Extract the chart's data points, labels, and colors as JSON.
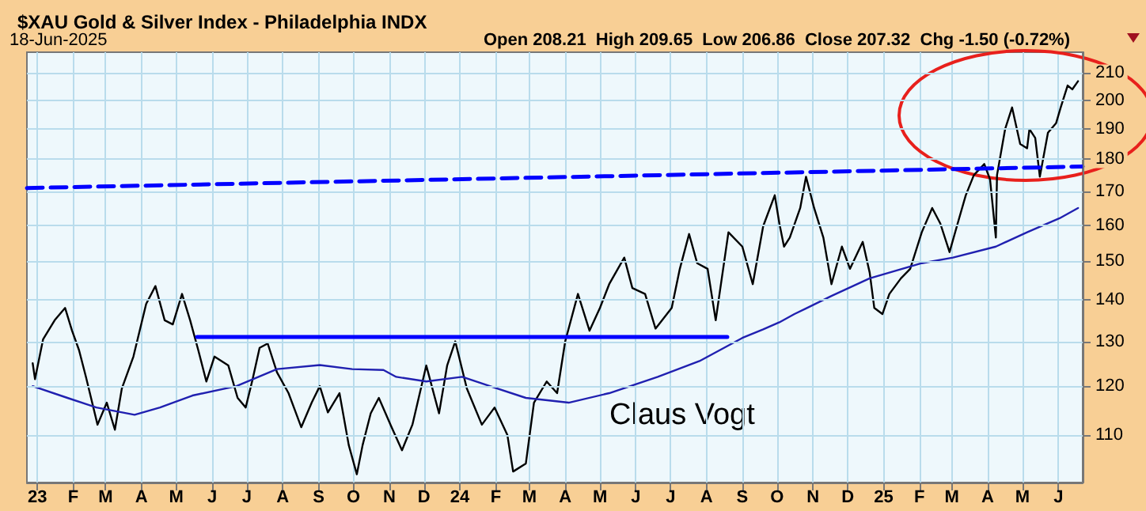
{
  "chart_data": {
    "type": "line",
    "title": "$XAU Gold & Silver Index - Philadelphia INDX",
    "annotations": [
      "18-Jun-2025",
      "Open 208.21  High 209.65  Low 206.86  Close 207.32  Chg -1.50 (-0.72%)",
      "Claus Vogt"
    ],
    "log": "y",
    "grid": true,
    "marker": "none",
    "xlim": [
      "2022-12-23",
      "2025-06-22"
    ],
    "xticks": [
      {
        "value": "2023-01-01",
        "label": "23"
      },
      {
        "value": "2023-02-01",
        "label": "F"
      },
      {
        "value": "2023-03-01",
        "label": "M"
      },
      {
        "value": "2023-04-01",
        "label": "A"
      },
      {
        "value": "2023-05-01",
        "label": "M"
      },
      {
        "value": "2023-06-01",
        "label": "J"
      },
      {
        "value": "2023-07-01",
        "label": "J"
      },
      {
        "value": "2023-08-01",
        "label": "A"
      },
      {
        "value": "2023-09-01",
        "label": "S"
      },
      {
        "value": "2023-10-01",
        "label": "O"
      },
      {
        "value": "2023-11-01",
        "label": "N"
      },
      {
        "value": "2023-12-01",
        "label": "D"
      },
      {
        "value": "2024-01-01",
        "label": "24"
      },
      {
        "value": "2024-02-01",
        "label": "F"
      },
      {
        "value": "2024-03-01",
        "label": "M"
      },
      {
        "value": "2024-04-01",
        "label": "A"
      },
      {
        "value": "2024-05-01",
        "label": "M"
      },
      {
        "value": "2024-06-01",
        "label": "J"
      },
      {
        "value": "2024-07-01",
        "label": "J"
      },
      {
        "value": "2024-08-01",
        "label": "A"
      },
      {
        "value": "2024-09-01",
        "label": "S"
      },
      {
        "value": "2024-10-01",
        "label": "O"
      },
      {
        "value": "2024-11-01",
        "label": "N"
      },
      {
        "value": "2024-12-01",
        "label": "D"
      },
      {
        "value": "2025-01-01",
        "label": "25"
      },
      {
        "value": "2025-02-01",
        "label": "F"
      },
      {
        "value": "2025-03-01",
        "label": "M"
      },
      {
        "value": "2025-04-01",
        "label": "A"
      },
      {
        "value": "2025-05-01",
        "label": "M"
      },
      {
        "value": "2025-06-01",
        "label": "J"
      }
    ],
    "ylim": [
      101,
      218
    ],
    "yticks": [
      110,
      120,
      130,
      140,
      150,
      160,
      170,
      180,
      190,
      200,
      210
    ],
    "series": [
      {
        "color": "#000000",
        "line_style": "solid",
        "x": [
          "2022-12-28",
          "2022-12-30",
          "2023-01-06",
          "2023-01-16",
          "2023-01-25",
          "2023-01-31",
          "2023-02-06",
          "2023-02-12",
          "2023-02-22",
          "2023-03-02",
          "2023-03-09",
          "2023-03-15",
          "2023-03-25",
          "2023-04-05",
          "2023-04-13",
          "2023-04-21",
          "2023-04-28",
          "2023-05-06",
          "2023-05-13",
          "2023-05-20",
          "2023-05-27",
          "2023-06-03",
          "2023-06-15",
          "2023-06-23",
          "2023-06-30",
          "2023-07-06",
          "2023-07-12",
          "2023-07-19",
          "2023-07-27",
          "2023-08-06",
          "2023-08-17",
          "2023-08-26",
          "2023-09-02",
          "2023-09-09",
          "2023-09-19",
          "2023-09-27",
          "2023-10-04",
          "2023-10-09",
          "2023-10-16",
          "2023-10-23",
          "2023-11-03",
          "2023-11-12",
          "2023-11-21",
          "2023-12-03",
          "2023-12-14",
          "2023-12-21",
          "2023-12-28",
          "2024-01-07",
          "2024-01-20",
          "2024-01-31",
          "2024-02-11",
          "2024-02-16",
          "2024-02-27",
          "2024-03-05",
          "2024-03-16",
          "2024-03-25",
          "2024-04-01",
          "2024-04-12",
          "2024-04-22",
          "2024-05-01",
          "2024-05-09",
          "2024-05-22",
          "2024-05-29",
          "2024-06-09",
          "2024-06-18",
          "2024-07-02",
          "2024-07-09",
          "2024-07-17",
          "2024-07-24",
          "2024-08-02",
          "2024-08-09",
          "2024-08-20",
          "2024-09-01",
          "2024-09-10",
          "2024-09-19",
          "2024-09-29",
          "2024-10-03",
          "2024-10-07",
          "2024-10-12",
          "2024-10-21",
          "2024-10-26",
          "2024-11-02",
          "2024-11-10",
          "2024-11-17",
          "2024-11-26",
          "2024-12-03",
          "2024-12-14",
          "2024-12-20",
          "2024-12-24",
          "2024-12-31",
          "2025-01-06",
          "2025-01-16",
          "2025-01-24",
          "2025-02-03",
          "2025-02-12",
          "2025-02-19",
          "2025-02-27",
          "2025-03-06",
          "2025-03-13",
          "2025-03-20",
          "2025-03-29",
          "2025-04-03",
          "2025-04-08",
          "2025-04-09",
          "2025-04-16",
          "2025-04-22",
          "2025-04-29",
          "2025-05-05",
          "2025-05-07",
          "2025-05-12",
          "2025-05-16",
          "2025-05-23",
          "2025-05-30",
          "2025-06-03",
          "2025-06-09",
          "2025-06-13",
          "2025-06-18"
        ],
        "values": [
          125,
          121.5,
          130.5,
          135,
          138,
          132.5,
          128,
          122,
          112,
          116.5,
          111,
          119.5,
          126.5,
          139,
          143.5,
          135,
          134,
          141.5,
          135,
          128,
          121,
          126.5,
          124.5,
          117.5,
          115.5,
          121.5,
          128.5,
          129.5,
          123,
          118.5,
          111.5,
          116.5,
          120,
          114.5,
          118.5,
          108,
          102.5,
          108,
          114.3,
          117.5,
          111.5,
          107,
          112,
          124.5,
          114.3,
          124.5,
          130,
          119.5,
          112,
          115.5,
          110,
          103,
          104.5,
          116.5,
          121,
          118.5,
          130,
          141.5,
          132.5,
          138,
          144,
          151,
          143,
          141.5,
          133,
          138,
          148,
          157.5,
          149.5,
          148,
          135,
          158,
          154,
          144,
          159.7,
          168.8,
          160.5,
          154,
          156.5,
          165,
          174.5,
          165,
          156.5,
          144,
          154,
          148,
          155.3,
          147,
          138,
          136.5,
          141.5,
          145.5,
          148,
          158,
          165,
          160.5,
          152.5,
          160.5,
          168.8,
          175,
          178.5,
          173.6,
          156.5,
          175,
          190,
          197.5,
          185,
          183.6,
          190,
          187,
          174.5,
          188.8,
          192,
          197.5,
          205.4,
          204,
          207
        ]
      },
      {
        "color": "#2020b0",
        "line_style": "solid",
        "x": [
          "2022-12-28",
          "2023-01-27",
          "2023-02-21",
          "2023-03-26",
          "2023-04-17",
          "2023-05-15",
          "2023-06-22",
          "2023-07-27",
          "2023-09-02",
          "2023-09-30",
          "2023-10-27",
          "2023-11-07",
          "2023-12-03",
          "2024-01-03",
          "2024-01-27",
          "2024-02-27",
          "2024-04-04",
          "2024-05-09",
          "2024-06-20",
          "2024-07-26",
          "2024-09-01",
          "2024-09-19",
          "2024-10-03",
          "2024-10-16",
          "2024-11-17",
          "2024-12-20",
          "2025-02-03",
          "2025-03-02",
          "2025-04-08",
          "2025-05-05",
          "2025-06-02",
          "2025-06-18"
        ],
        "values": [
          120,
          117.5,
          115.5,
          114,
          115.5,
          118,
          120,
          123.7,
          124.6,
          123.7,
          123.5,
          122,
          121,
          122,
          120,
          117.5,
          116.5,
          118.5,
          122,
          125.5,
          130.8,
          132.8,
          134.5,
          136.5,
          141,
          145.5,
          149.5,
          151,
          154,
          158,
          162,
          165
        ]
      },
      {
        "color": "#0000ff",
        "line_style": "solid",
        "x": [
          "2023-05-19",
          "2024-08-19"
        ],
        "values": [
          131,
          131
        ]
      },
      {
        "color": "#0000ff",
        "line_style": "dashed",
        "x": [
          "2022-12-23",
          "2025-06-22"
        ],
        "values": [
          171,
          177.7
        ]
      }
    ]
  }
}
